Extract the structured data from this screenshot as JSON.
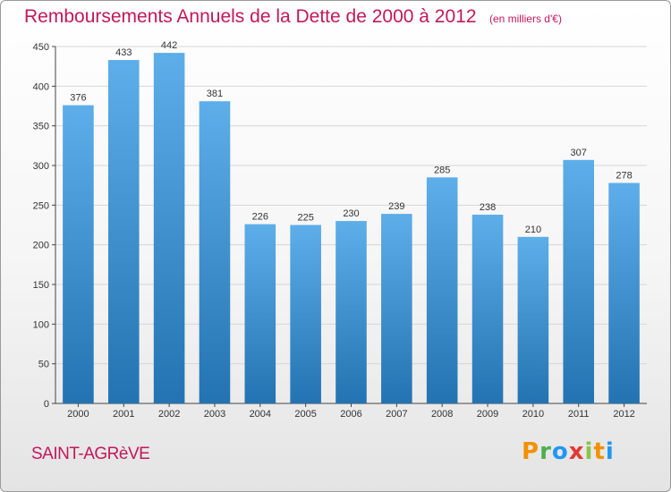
{
  "chart_data": {
    "type": "bar",
    "title": "Remboursements Annuels de la Dette de 2000 à 2012",
    "unit": "(en milliers d'€)",
    "categories": [
      "2000",
      "2001",
      "2002",
      "2003",
      "2004",
      "2005",
      "2006",
      "2007",
      "2008",
      "2009",
      "2010",
      "2011",
      "2012"
    ],
    "values": [
      376,
      433,
      442,
      381,
      226,
      225,
      230,
      239,
      285,
      238,
      210,
      307,
      278
    ],
    "ylim": [
      0,
      450
    ],
    "yticks": [
      0,
      50,
      100,
      150,
      200,
      250,
      300,
      350,
      400,
      450
    ],
    "grid": true,
    "legend": "none"
  },
  "footer": {
    "commune": "SAINT-AGRèVE",
    "brand": "Proxiti"
  },
  "colors": {
    "title": "#c2185b",
    "bar_top": "#5daee9",
    "bar_bottom": "#2373b2",
    "brand_letters": [
      "#f29100",
      "#4caf50",
      "#2196f3",
      "#e53935",
      "#8bc34a",
      "#f29100",
      "#2196f3"
    ]
  }
}
